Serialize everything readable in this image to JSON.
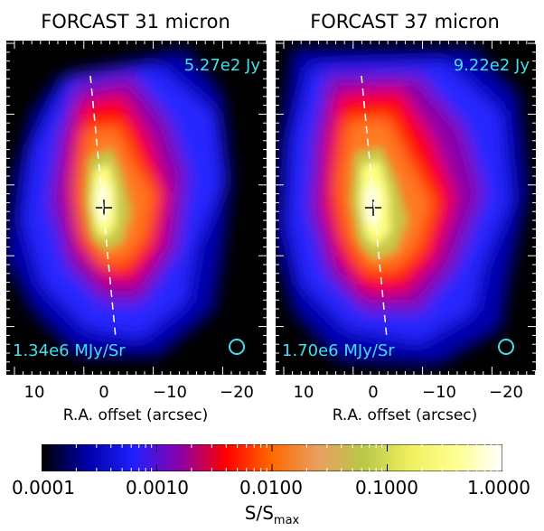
{
  "panels": [
    {
      "title": "FORCAST 31 micron",
      "total_flux": "5.27e2 Jy",
      "peak_intensity": "1.34e6 MJy/Sr",
      "xtick_labels": [
        "10",
        "0",
        "−10",
        "−20"
      ],
      "xlabel": "R.A. offset (arcsec)"
    },
    {
      "title": "FORCAST 37 micron",
      "total_flux": "9.22e2 Jy",
      "peak_intensity": "1.70e6 MJy/Sr",
      "xtick_labels": [
        "10",
        "0",
        "−10",
        "−20"
      ],
      "xlabel": "R.A. offset (arcsec)"
    }
  ],
  "colorbar": {
    "tick_labels": [
      "0.0001",
      "0.0010",
      "0.0100",
      "0.1000",
      "1.0000"
    ],
    "title_main": "S/S",
    "title_sub": "max",
    "colors": [
      "#000000",
      "#0000aa",
      "#2020ff",
      "#8a00a8",
      "#ff0000",
      "#ff6a00",
      "#e8a060",
      "#b8c848",
      "#f0f060",
      "#ffff90",
      "#ffffff"
    ]
  },
  "annotation_color": "#40e0f0"
}
